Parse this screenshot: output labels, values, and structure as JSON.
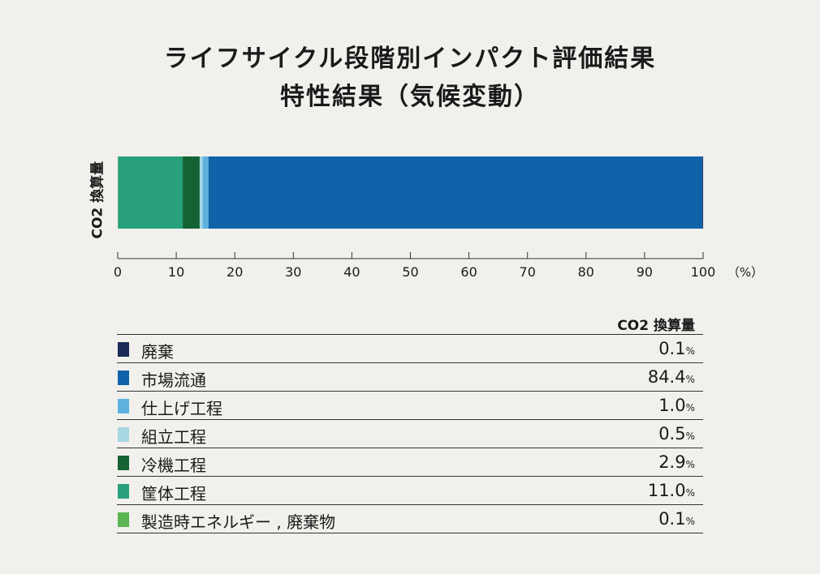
{
  "title": "ライフサイクル段階別インパクト評価結果",
  "subtitle": "特性結果（気候変動）",
  "chart_data": {
    "type": "bar",
    "orientation": "horizontal-stacked",
    "category": "CO2 換算量",
    "ylabel": "CO2 換算量",
    "xlim": [
      0,
      100
    ],
    "x_unit": "（%）",
    "x_ticks": [
      0,
      10,
      20,
      30,
      40,
      50,
      60,
      70,
      80,
      90,
      100
    ],
    "grid": false,
    "series": [
      {
        "name": "製造時エネルギー , 廃棄物",
        "value": 0.1,
        "color": "#5ab552"
      },
      {
        "name": "筐体工程",
        "value": 11.0,
        "color": "#27a07b"
      },
      {
        "name": "冷機工程",
        "value": 2.9,
        "color": "#156333"
      },
      {
        "name": "組立工程",
        "value": 0.5,
        "color": "#a6d7e3"
      },
      {
        "name": "仕上げ工程",
        "value": 1.0,
        "color": "#5eb2e0"
      },
      {
        "name": "市場流通",
        "value": 84.4,
        "color": "#1062a9"
      },
      {
        "name": "廃棄",
        "value": 0.1,
        "color": "#1b2a56"
      }
    ]
  },
  "legend_table": {
    "header": "CO2 換算量",
    "rows": [
      {
        "label": "廃棄",
        "value": "0.1",
        "unit": "%",
        "color": "#1b2a56"
      },
      {
        "label": "市場流通",
        "value": "84.4",
        "unit": "%",
        "color": "#1062a9"
      },
      {
        "label": "仕上げ工程",
        "value": "1.0",
        "unit": "%",
        "color": "#5eb2e0"
      },
      {
        "label": "組立工程",
        "value": "0.5",
        "unit": "%",
        "color": "#a6d7e3"
      },
      {
        "label": "冷機工程",
        "value": "2.9",
        "unit": "%",
        "color": "#156333"
      },
      {
        "label": "筐体工程",
        "value": "11.0",
        "unit": "%",
        "color": "#27a07b"
      },
      {
        "label": "製造時エネルギー , 廃棄物",
        "value": "0.1",
        "unit": "%",
        "color": "#5ab552"
      }
    ]
  }
}
